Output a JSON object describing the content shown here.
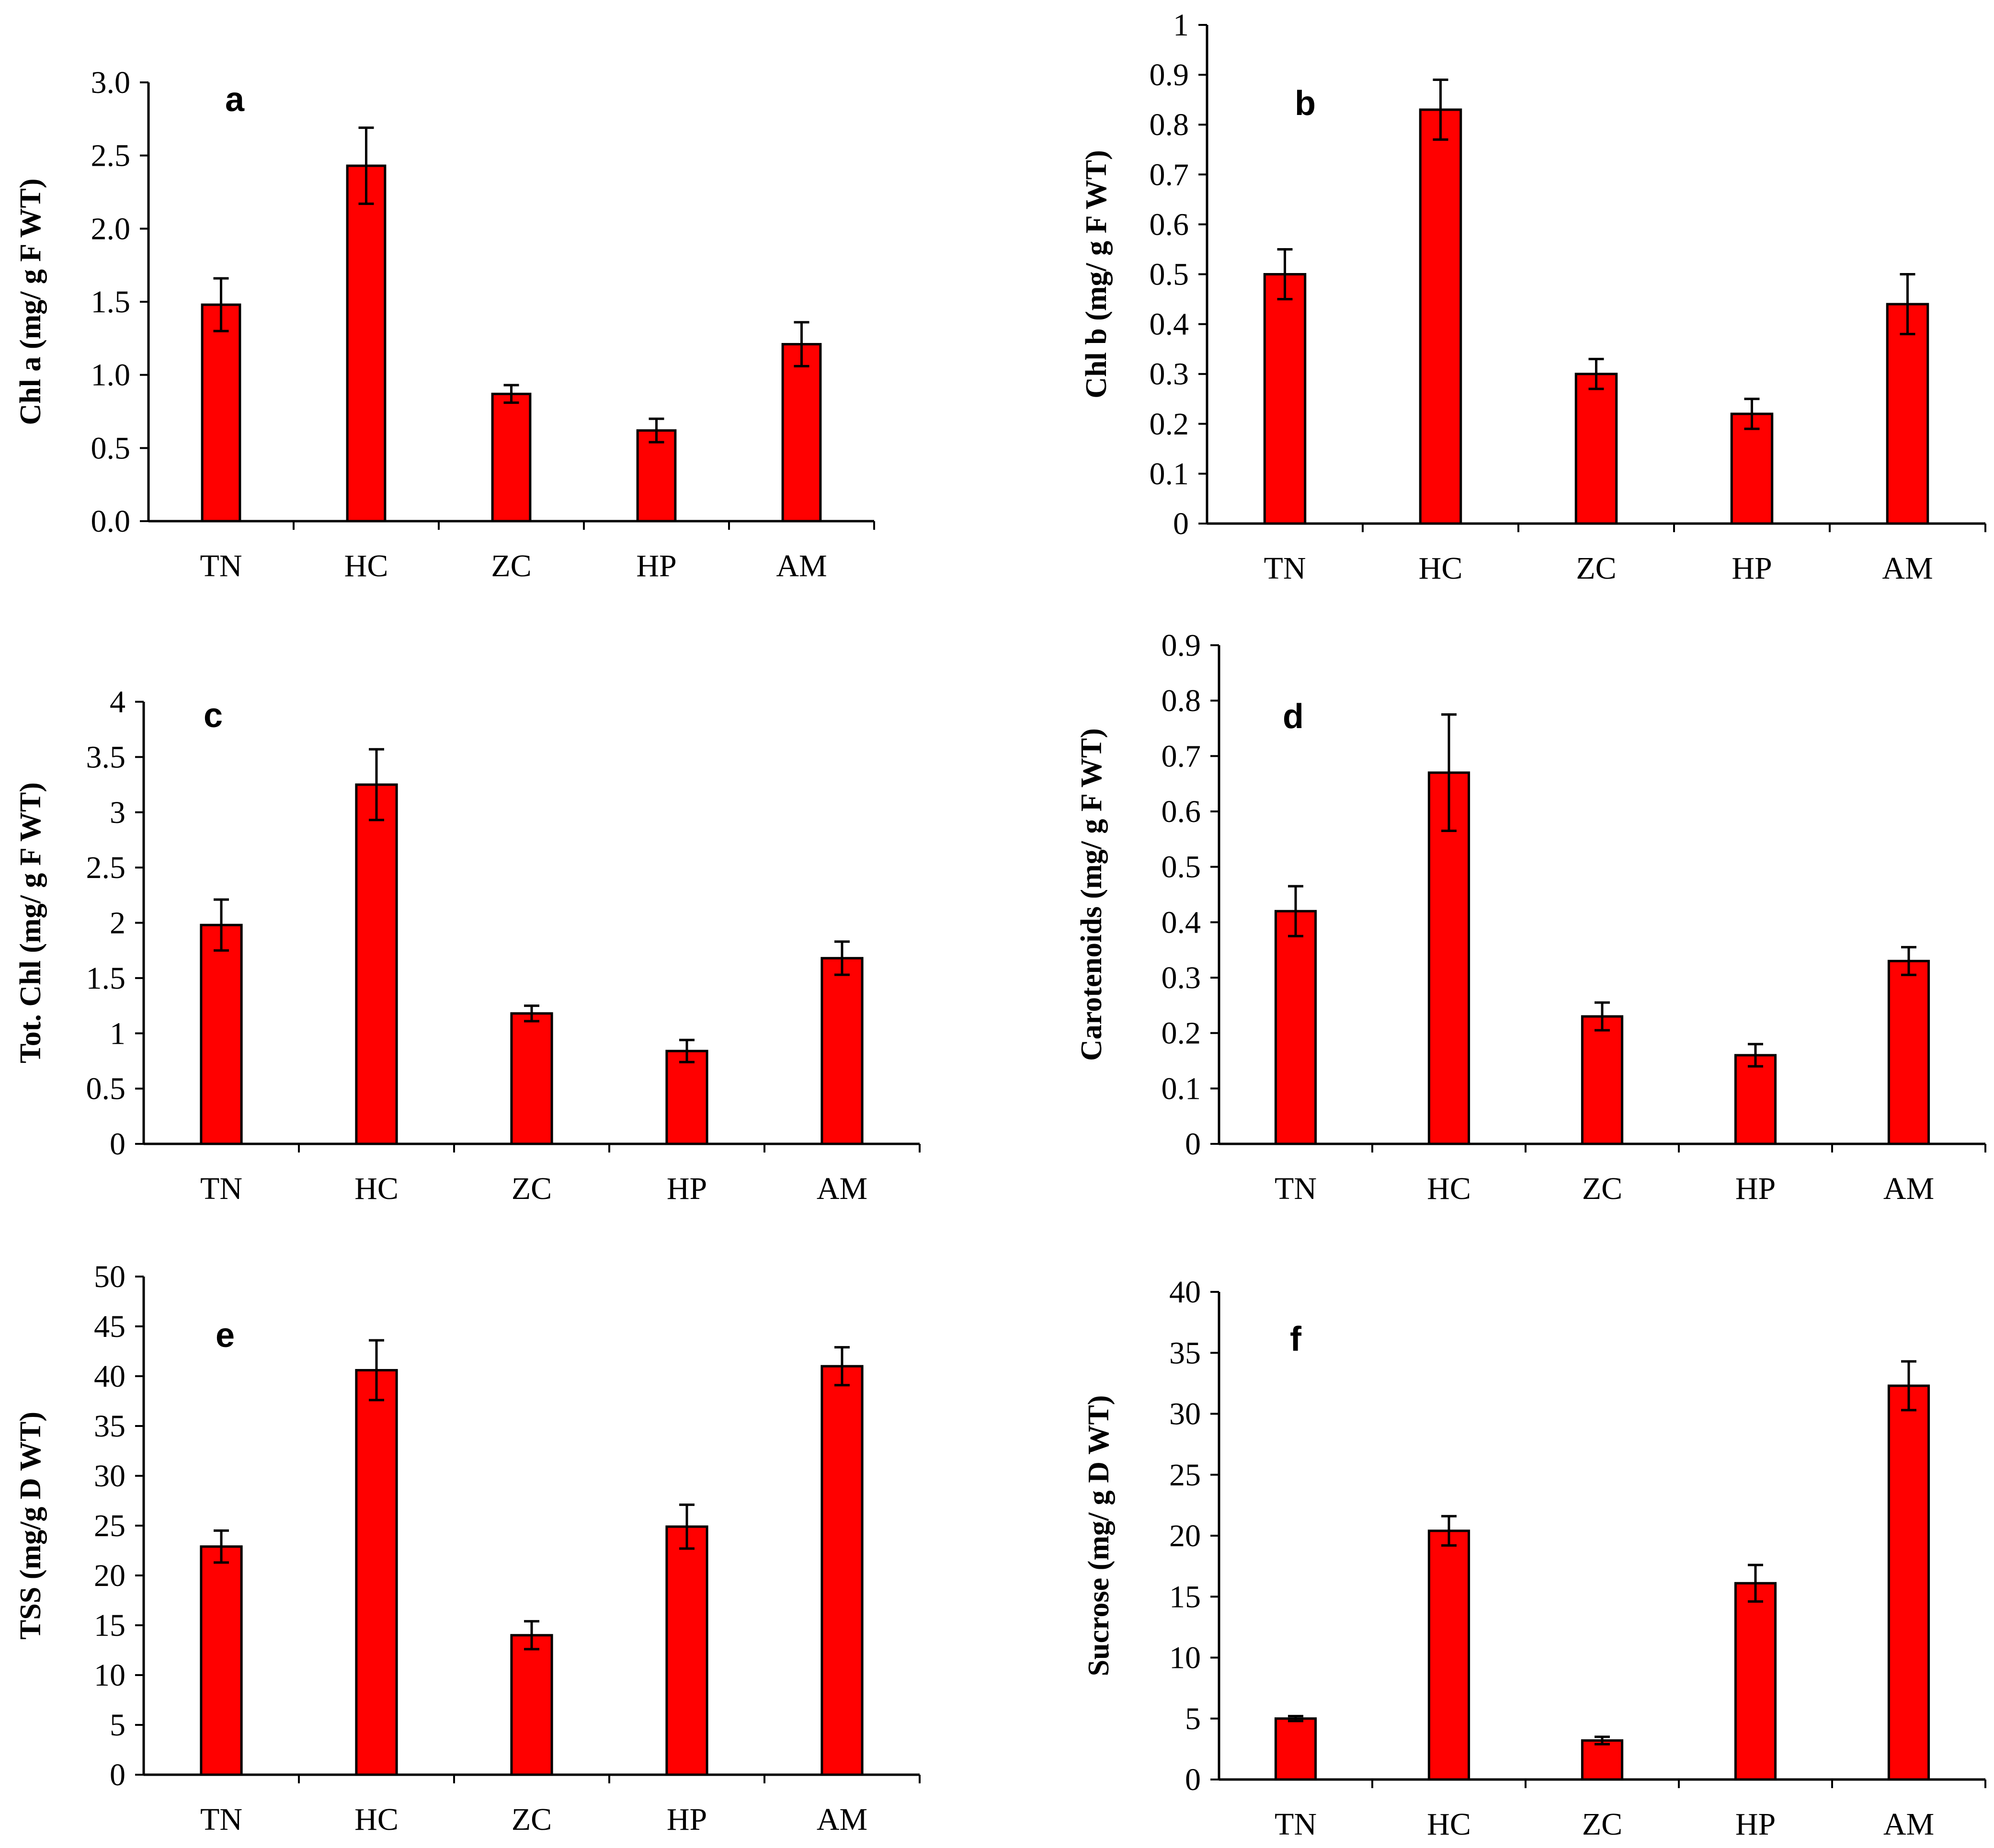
{
  "chart_data": [
    {
      "type": "bar",
      "panel_label": "a",
      "ylabel": "Chl a (mg/ g F WT)",
      "categories": [
        "TN",
        "HC",
        "ZC",
        "HP",
        "AM"
      ],
      "values": [
        1.48,
        2.43,
        0.87,
        0.62,
        1.21
      ],
      "errors": [
        0.18,
        0.26,
        0.06,
        0.08,
        0.15
      ],
      "ylim": [
        0,
        3.0
      ],
      "yticks": [
        0.0,
        0.5,
        1.0,
        1.5,
        2.0,
        2.5,
        3.0
      ],
      "ytick_labels": [
        "0.0",
        "0.5",
        "1.0",
        "1.5",
        "2.0",
        "2.5",
        "3.0"
      ],
      "bar_color": "#ff0000"
    },
    {
      "type": "bar",
      "panel_label": "b",
      "ylabel": "Chl b (mg/ g F WT)",
      "categories": [
        "TN",
        "HC",
        "ZC",
        "HP",
        "AM"
      ],
      "values": [
        0.5,
        0.83,
        0.3,
        0.22,
        0.44
      ],
      "errors": [
        0.05,
        0.06,
        0.03,
        0.03,
        0.06
      ],
      "ylim": [
        0,
        1
      ],
      "yticks": [
        0,
        0.1,
        0.2,
        0.3,
        0.4,
        0.5,
        0.6,
        0.7,
        0.8,
        0.9,
        1
      ],
      "ytick_labels": [
        "0",
        "0.1",
        "0.2",
        "0.3",
        "0.4",
        "0.5",
        "0.6",
        "0.7",
        "0.8",
        "0.9",
        "1"
      ],
      "bar_color": "#ff0000"
    },
    {
      "type": "bar",
      "panel_label": "c",
      "ylabel": "Tot. Chl (mg/ g F WT)",
      "categories": [
        "TN",
        "HC",
        "ZC",
        "HP",
        "AM"
      ],
      "values": [
        1.98,
        3.25,
        1.18,
        0.84,
        1.68
      ],
      "errors": [
        0.23,
        0.32,
        0.07,
        0.1,
        0.15
      ],
      "ylim": [
        0,
        4
      ],
      "yticks": [
        0,
        0.5,
        1,
        1.5,
        2,
        2.5,
        3,
        3.5,
        4
      ],
      "ytick_labels": [
        "0",
        "0.5",
        "1",
        "1.5",
        "2",
        "2.5",
        "3",
        "3.5",
        "4"
      ],
      "bar_color": "#ff0000"
    },
    {
      "type": "bar",
      "panel_label": "d",
      "ylabel": "Carotenoids (mg/ g F WT)",
      "categories": [
        "TN",
        "HC",
        "ZC",
        "HP",
        "AM"
      ],
      "values": [
        0.42,
        0.67,
        0.23,
        0.16,
        0.33
      ],
      "errors": [
        0.045,
        0.105,
        0.025,
        0.02,
        0.025
      ],
      "ylim": [
        0,
        0.9
      ],
      "yticks": [
        0,
        0.1,
        0.2,
        0.3,
        0.4,
        0.5,
        0.6,
        0.7,
        0.8,
        0.9
      ],
      "ytick_labels": [
        "0",
        "0.1",
        "0.2",
        "0.3",
        "0.4",
        "0.5",
        "0.6",
        "0.7",
        "0.8",
        "0.9"
      ],
      "bar_color": "#ff0000"
    },
    {
      "type": "bar",
      "panel_label": "e",
      "ylabel": "TSS (mg/g D WT)",
      "categories": [
        "TN",
        "HC",
        "ZC",
        "HP",
        "AM"
      ],
      "values": [
        22.9,
        40.6,
        14.0,
        24.9,
        41.0
      ],
      "errors": [
        1.6,
        3.0,
        1.4,
        2.2,
        1.9
      ],
      "ylim": [
        0,
        50
      ],
      "yticks": [
        0,
        5,
        10,
        15,
        20,
        25,
        30,
        35,
        40,
        45,
        50
      ],
      "ytick_labels": [
        "0",
        "5",
        "10",
        "15",
        "20",
        "25",
        "30",
        "35",
        "40",
        "45",
        "50"
      ],
      "bar_color": "#ff0000"
    },
    {
      "type": "bar",
      "panel_label": "f",
      "ylabel": "Sucrose (mg/ g D WT)",
      "categories": [
        "TN",
        "HC",
        "ZC",
        "HP",
        "AM"
      ],
      "values": [
        5.0,
        20.4,
        3.2,
        16.1,
        32.3
      ],
      "errors": [
        0.2,
        1.2,
        0.3,
        1.5,
        2.0
      ],
      "ylim": [
        0,
        40
      ],
      "yticks": [
        0,
        5,
        10,
        15,
        20,
        25,
        30,
        35,
        40
      ],
      "ytick_labels": [
        "0",
        "5",
        "10",
        "15",
        "20",
        "25",
        "30",
        "35",
        "40"
      ],
      "bar_color": "#ff0000"
    }
  ]
}
